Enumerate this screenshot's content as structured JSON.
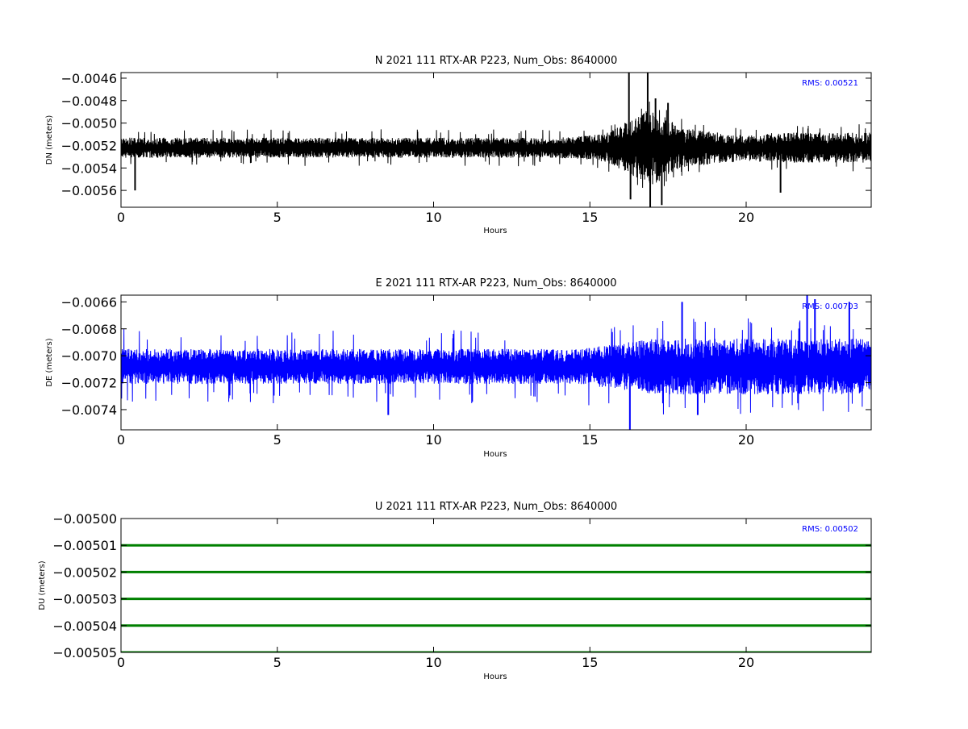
{
  "chart_data": [
    {
      "type": "line",
      "title": "N 2021 111 RTX-AR  P223, Num_Obs: 8640000",
      "xlabel": "Hours",
      "ylabel": "DN (meters)",
      "xlim": [
        0,
        24
      ],
      "ylim": [
        -0.00575,
        -0.00455
      ],
      "xticks": [
        0,
        5,
        10,
        15,
        20
      ],
      "yticks": [
        -0.0056,
        -0.0054,
        -0.0052,
        -0.005,
        -0.0048,
        -0.0046
      ],
      "ytick_labels": [
        "−0.0056",
        "−0.0054",
        "−0.0052",
        "−0.0050",
        "−0.0048",
        "−0.0046"
      ],
      "rms_text": "RMS:  0.00521",
      "color": "#000000",
      "grid": false,
      "center": -0.00522,
      "base_amp": 9e-05,
      "spike_amp": 3e-05,
      "envelope": [
        [
          0,
          1.0
        ],
        [
          14,
          1.0
        ],
        [
          15.5,
          1.4
        ],
        [
          16.2,
          2.6
        ],
        [
          16.9,
          3.8
        ],
        [
          17.3,
          3.2
        ],
        [
          18,
          1.9
        ],
        [
          19,
          1.6
        ],
        [
          20,
          1.3
        ],
        [
          21,
          1.5
        ],
        [
          24,
          1.5
        ]
      ],
      "peaks": [
        {
          "x": 16.25,
          "y": -0.00455
        },
        {
          "x": 16.3,
          "y": -0.00568
        },
        {
          "x": 16.85,
          "y": -0.00455
        },
        {
          "x": 16.93,
          "y": -0.00575
        },
        {
          "x": 17.1,
          "y": -0.00478
        },
        {
          "x": 17.3,
          "y": -0.00573
        },
        {
          "x": 17.5,
          "y": -0.00482
        },
        {
          "x": 0.45,
          "y": -0.0056
        },
        {
          "x": 21.1,
          "y": -0.00562
        }
      ]
    },
    {
      "type": "line",
      "title": "E 2021 111 RTX-AR  P223, Num_Obs: 8640000",
      "xlabel": "Hours",
      "ylabel": "DE (meters)",
      "xlim": [
        0,
        24
      ],
      "ylim": [
        -0.00755,
        -0.00655
      ],
      "xticks": [
        0,
        5,
        10,
        15,
        20
      ],
      "yticks": [
        -0.0074,
        -0.0072,
        -0.007,
        -0.0068,
        -0.0066
      ],
      "ytick_labels": [
        "−0.0074",
        "−0.0072",
        "−0.0070",
        "−0.0068",
        "−0.0066"
      ],
      "rms_text": "RMS:  0.00703",
      "color": "#0000ff",
      "grid": false,
      "center": -0.00708,
      "base_amp": 0.00013,
      "spike_amp": 6e-05,
      "envelope": [
        [
          0,
          1.0
        ],
        [
          14.5,
          1.0
        ],
        [
          15.5,
          1.2
        ],
        [
          17,
          1.6
        ],
        [
          24,
          1.6
        ]
      ],
      "peaks": [
        {
          "x": 16.28,
          "y": -0.00755
        },
        {
          "x": 17.95,
          "y": -0.0066
        },
        {
          "x": 21.95,
          "y": -0.00655
        },
        {
          "x": 22.2,
          "y": -0.00658
        },
        {
          "x": 23.3,
          "y": -0.0066
        },
        {
          "x": 8.55,
          "y": -0.00744
        },
        {
          "x": 18.45,
          "y": -0.00744
        }
      ]
    },
    {
      "type": "line",
      "title": "U 2021 111 RTX-AR  P223, Num_Obs: 8640000",
      "xlabel": "Hours",
      "ylabel": "DU (meters)",
      "xlim": [
        0,
        24
      ],
      "ylim": [
        -0.00505,
        -0.005
      ],
      "xticks": [
        0,
        5,
        10,
        15,
        20
      ],
      "yticks": [
        -0.00505,
        -0.00504,
        -0.00503,
        -0.00502,
        -0.00501,
        -0.005
      ],
      "ytick_labels": [
        "−0.00505",
        "−0.00504",
        "−0.00503",
        "−0.00502",
        "−0.00501",
        "−0.00500"
      ],
      "rms_text": "RMS:  0.00502",
      "color": "#008000",
      "grid": false,
      "levels": [
        -0.00501,
        -0.00502,
        -0.00503,
        -0.00504,
        -0.00505
      ]
    }
  ],
  "xtick_labels": [
    "0",
    "5",
    "10",
    "15",
    "20"
  ]
}
